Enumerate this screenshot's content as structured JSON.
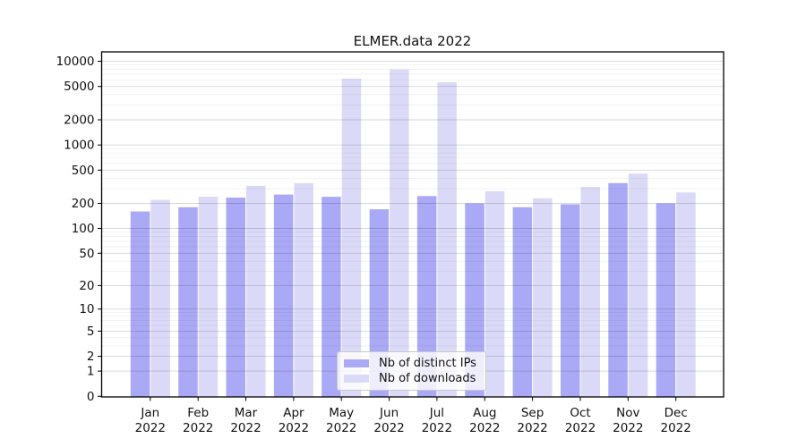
{
  "chart_data": {
    "type": "bar",
    "title": "ELMER.data 2022",
    "yscale": "symlog",
    "grid": true,
    "legend_position": "lower center",
    "x_tick_year": "2022",
    "categories": [
      "Jan",
      "Feb",
      "Mar",
      "Apr",
      "May",
      "Jun",
      "Jul",
      "Aug",
      "Sep",
      "Oct",
      "Nov",
      "Dec"
    ],
    "series": [
      {
        "name": "Nb of distinct IPs",
        "color": "#a9a9f5",
        "values": [
          160,
          180,
          235,
          255,
          240,
          170,
          245,
          200,
          180,
          195,
          350,
          200
        ]
      },
      {
        "name": "Nb of downloads",
        "color": "#dadaf8",
        "values": [
          220,
          240,
          325,
          350,
          6200,
          8000,
          5600,
          280,
          230,
          315,
          455,
          270
        ]
      }
    ],
    "yticks": [
      0,
      1,
      2,
      5,
      10,
      20,
      50,
      100,
      200,
      500,
      1000,
      2000,
      5000,
      10000
    ],
    "ylim": [
      0,
      10000
    ]
  }
}
